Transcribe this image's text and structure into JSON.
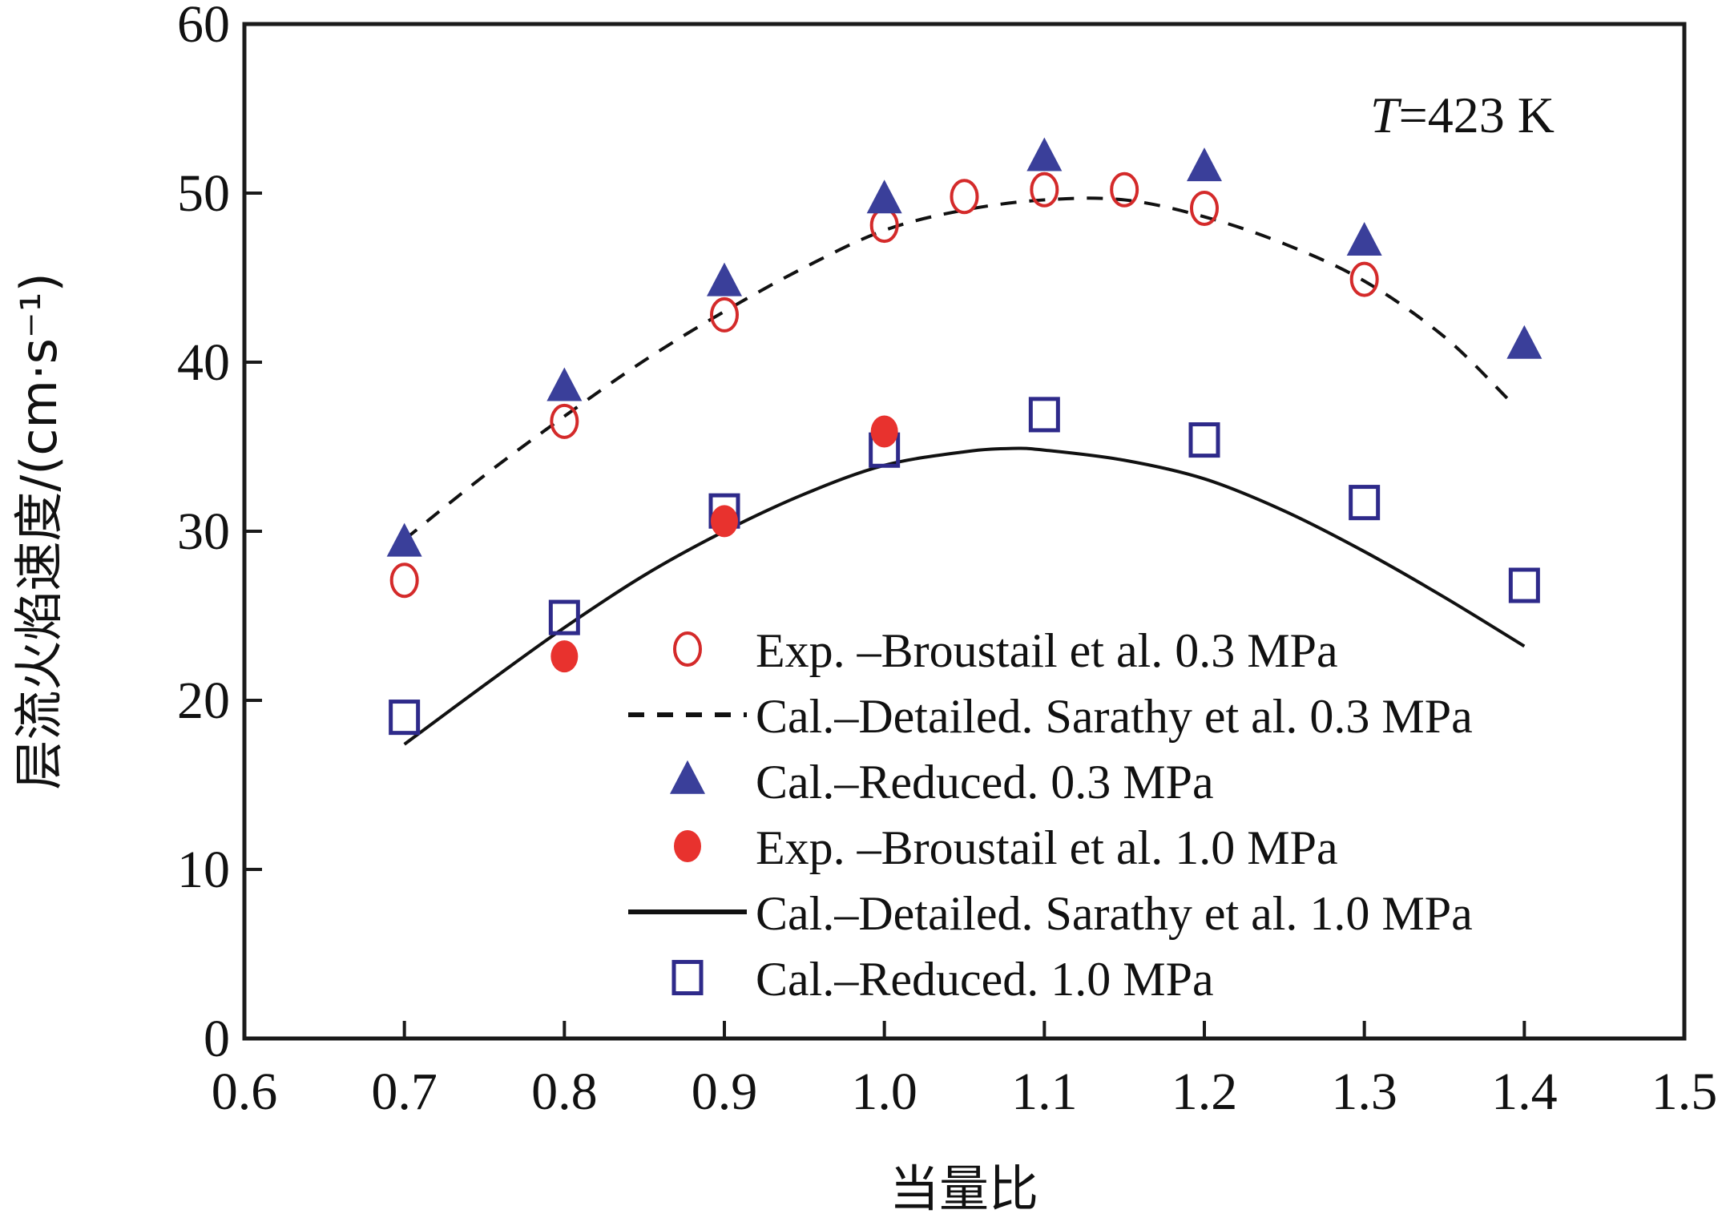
{
  "chart_data": {
    "type": "scatter",
    "title": "",
    "xlabel": "当量比",
    "ylabel": "层流火焰速度/(cm·s⁻¹)",
    "xlim": [
      0.6,
      1.5
    ],
    "ylim": [
      0,
      60
    ],
    "xticks": [
      "0.6",
      "0.7",
      "0.8",
      "0.9",
      "1.0",
      "1.1",
      "1.2",
      "1.3",
      "1.4",
      "1.5"
    ],
    "yticks": [
      "0",
      "10",
      "20",
      "30",
      "40",
      "50",
      "60"
    ],
    "grid": false,
    "legend_position": "bottom-right",
    "annotation": {
      "italic": "T",
      "text": "=423 K"
    },
    "series": [
      {
        "name": "Exp. –Broustail et al. 0.3 MPa",
        "kind": "marker",
        "marker": "open-circle",
        "color": "#d42a2a",
        "x": [
          0.7,
          0.8,
          0.9,
          1.0,
          1.05,
          1.1,
          1.15,
          1.2,
          1.3
        ],
        "y": [
          27.1,
          36.5,
          42.8,
          48.1,
          49.8,
          50.2,
          50.2,
          49.1,
          44.9
        ]
      },
      {
        "name": "Cal.–Detailed. Sarathy et al. 0.3 MPa",
        "kind": "line",
        "dash": "dashed",
        "color": "#111111",
        "x": [
          0.7,
          0.75,
          0.8,
          0.85,
          0.9,
          0.95,
          1.0,
          1.05,
          1.1,
          1.15,
          1.2,
          1.25,
          1.3,
          1.35,
          1.39
        ],
        "y": [
          29.5,
          33.3,
          36.8,
          40.1,
          43.0,
          45.6,
          47.8,
          49.0,
          49.6,
          49.6,
          48.6,
          47.0,
          44.8,
          41.5,
          37.8
        ]
      },
      {
        "name": "Cal.–Reduced. 0.3 MPa",
        "kind": "marker",
        "marker": "filled-triangle",
        "color": "#3a3f9a",
        "x": [
          0.7,
          0.8,
          0.9,
          1.0,
          1.1,
          1.2,
          1.3,
          1.4
        ],
        "y": [
          29.3,
          38.5,
          44.7,
          49.6,
          52.1,
          51.5,
          47.1,
          41.0
        ]
      },
      {
        "name": "Exp. –Broustail et al. 1.0 MPa",
        "kind": "marker",
        "marker": "filled-circle",
        "color": "#e8322e",
        "x": [
          0.8,
          0.9,
          1.0
        ],
        "y": [
          22.6,
          30.6,
          35.9
        ]
      },
      {
        "name": "Cal.–Detailed. Sarathy et al. 1.0 MPa",
        "kind": "line",
        "dash": "solid",
        "color": "#111111",
        "x": [
          0.7,
          0.75,
          0.8,
          0.85,
          0.9,
          0.95,
          1.0,
          1.05,
          1.08,
          1.1,
          1.15,
          1.2,
          1.25,
          1.3,
          1.35,
          1.4
        ],
        "y": [
          17.4,
          20.9,
          24.3,
          27.4,
          30.0,
          32.2,
          33.9,
          34.7,
          34.9,
          34.8,
          34.2,
          33.1,
          31.2,
          28.8,
          26.1,
          23.2
        ]
      },
      {
        "name": "Cal.–Reduced. 1.0 MPa",
        "kind": "marker",
        "marker": "open-square",
        "color": "#2e2a8a",
        "x": [
          0.7,
          0.8,
          0.9,
          1.0,
          1.1,
          1.2,
          1.3,
          1.4
        ],
        "y": [
          19.0,
          24.9,
          31.2,
          34.8,
          36.9,
          35.4,
          31.7,
          26.8
        ]
      }
    ]
  }
}
